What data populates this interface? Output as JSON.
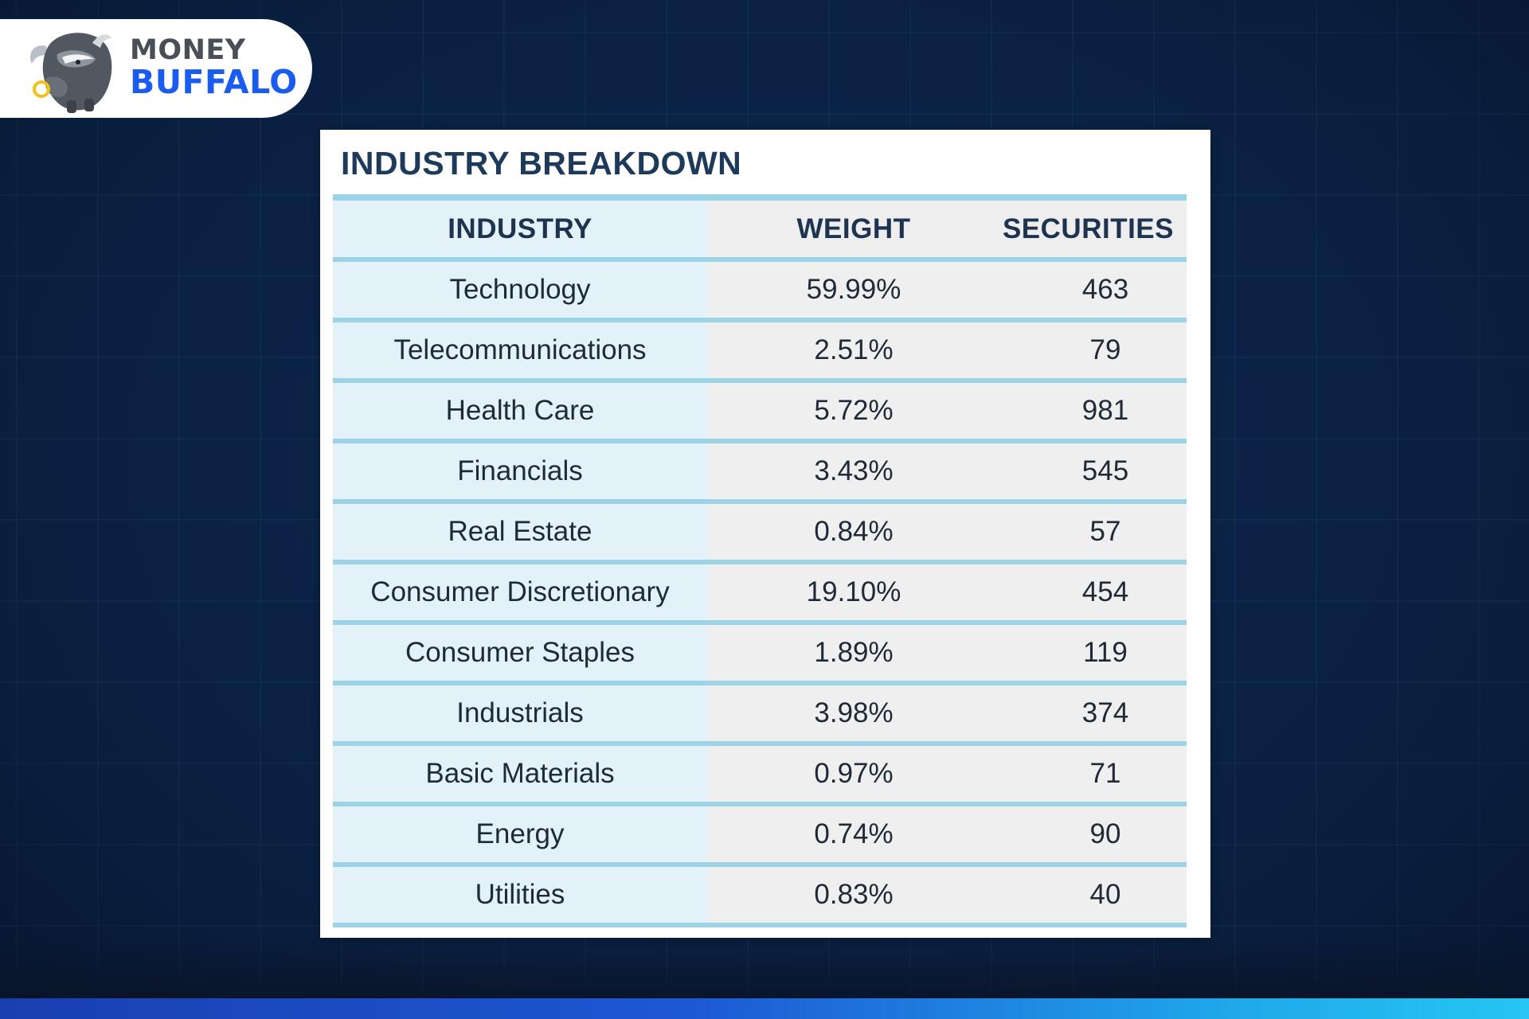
{
  "brand": {
    "line1": "MONEY",
    "line2": "BUFFALO",
    "icon": "buffalo-mascot-icon",
    "colors": {
      "line1": "#4a4f57",
      "line2": "#1a5cf0"
    }
  },
  "table": {
    "title": "INDUSTRY BREAKDOWN",
    "headers": [
      "INDUSTRY",
      "WEIGHT",
      "SECURITIES"
    ],
    "rows": [
      {
        "industry": "Technology",
        "weight": "59.99%",
        "securities": "463"
      },
      {
        "industry": "Telecommunications",
        "weight": "2.51%",
        "securities": "79"
      },
      {
        "industry": "Health Care",
        "weight": "5.72%",
        "securities": "981"
      },
      {
        "industry": "Financials",
        "weight": "3.43%",
        "securities": "545"
      },
      {
        "industry": "Real Estate",
        "weight": "0.84%",
        "securities": "57"
      },
      {
        "industry": "Consumer Discretionary",
        "weight": "19.10%",
        "securities": "454"
      },
      {
        "industry": "Consumer Staples",
        "weight": "1.89%",
        "securities": "119"
      },
      {
        "industry": "Industrials",
        "weight": "3.98%",
        "securities": "374"
      },
      {
        "industry": "Basic Materials",
        "weight": "0.97%",
        "securities": "71"
      },
      {
        "industry": "Energy",
        "weight": "0.74%",
        "securities": "90"
      },
      {
        "industry": "Utilities",
        "weight": "0.83%",
        "securities": "40"
      }
    ],
    "colors": {
      "title": "#1d3a5a",
      "divider": "#9cd3e6",
      "industry_column": "#e2f2f8",
      "value_columns": "#efefef"
    }
  },
  "theme": {
    "background": "#0b2347",
    "bottom_bar_start": "#1a3fb0",
    "bottom_bar_end": "#26c6f3"
  }
}
